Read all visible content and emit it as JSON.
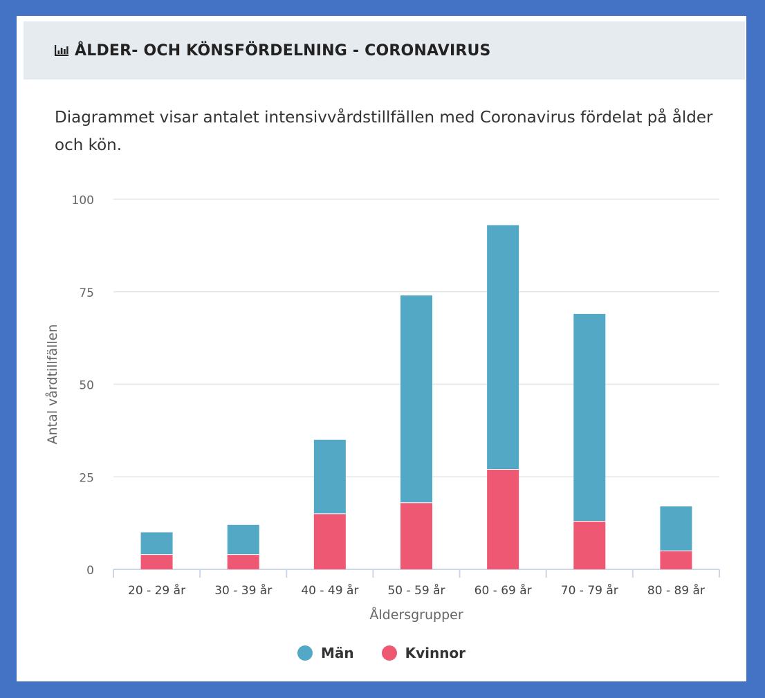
{
  "header": {
    "icon": "bar-chart-icon",
    "title": "ÅLDER- OCH KÖNSFÖRDELNING - CORONAVIRUS"
  },
  "description": "Diagrammet visar antalet intensivvårdstillfällen med Coronavirus fördelat på ålder och kön.",
  "colors": {
    "man": "#52a8c5",
    "kvinnor": "#ef5873",
    "grid": "#e6e6e6",
    "axis": "#ccd6eb"
  },
  "chart_data": {
    "type": "bar",
    "stacked": true,
    "categories": [
      "20 - 29 år",
      "30 - 39 år",
      "40 - 49 år",
      "50 - 59 år",
      "60 - 69 år",
      "70 - 79 år",
      "80 - 89 år"
    ],
    "series": [
      {
        "name": "Män",
        "values": [
          6,
          8,
          20,
          56,
          66,
          56,
          12
        ]
      },
      {
        "name": "Kvinnor",
        "values": [
          4,
          4,
          15,
          18,
          27,
          13,
          5
        ]
      }
    ],
    "xlabel": "Åldersgrupper",
    "ylabel": "Antal vårdtillfällen",
    "ylim": [
      0,
      100
    ],
    "yticks": [
      0,
      25,
      50,
      75,
      100
    ],
    "grid": true,
    "legend": "bottom-center"
  }
}
